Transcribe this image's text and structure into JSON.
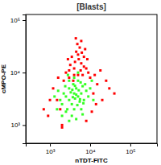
{
  "chart_data": {
    "type": "scatter",
    "title": "[Blasts]",
    "x_label": "nTDT-FITC",
    "y_label": "cMPO-PE",
    "log": true,
    "xlim": [
      250,
      460000
    ],
    "ylim": [
      450,
      128000
    ],
    "xticks": [
      {
        "value": 1000,
        "label": "10³"
      },
      {
        "value": 10000,
        "label": "10⁴"
      },
      {
        "value": 100000,
        "label": "10⁵"
      }
    ],
    "yticks": [
      {
        "value": 1000,
        "label": "10³"
      },
      {
        "value": 10000,
        "label": "10⁴"
      },
      {
        "value": 100000,
        "label": "10⁵"
      }
    ],
    "series": [
      {
        "color": "#ff0000",
        "x": [
          3000,
          4000,
          5000,
          6000,
          3500,
          4500,
          5500,
          7000,
          2500,
          8000,
          6500,
          4200,
          3200,
          5200,
          7500,
          4800,
          3800,
          9000,
          2200,
          6000,
          5000,
          3000,
          4000,
          7000,
          5800,
          2800,
          10000,
          8500,
          6200,
          4400,
          1500,
          1200,
          1800,
          12000,
          15000,
          20000,
          900,
          1000,
          25000,
          14000,
          2000,
          8000,
          11000,
          30000,
          700,
          13000,
          18000,
          1600,
          2000,
          40000
        ],
        "values": [
          8000,
          12000,
          9000,
          15000,
          20000,
          25000,
          30000,
          20000,
          10000,
          12000,
          9000,
          16000,
          14000,
          18000,
          28000,
          35000,
          7000,
          10000,
          7000,
          40000,
          22000,
          11000,
          9000,
          13000,
          11000,
          18000,
          8000,
          18000,
          24000,
          45000,
          3000,
          5000,
          2000,
          4000,
          6000,
          3000,
          1500,
          3000,
          7000,
          2500,
          1000,
          1200,
          1800,
          5000,
          2000,
          9000,
          11000,
          8000,
          900,
          4000
        ]
      },
      {
        "color": "#33ff22",
        "x": [
          3000,
          4000,
          5000,
          3500,
          4500,
          6000,
          2500,
          5500,
          4000,
          3000,
          7000,
          2000,
          3800,
          5000,
          6500,
          4200,
          3300,
          2700,
          8000,
          4800,
          6000,
          3500,
          2500,
          5200,
          4500,
          3700,
          2200,
          9000,
          1800,
          4000,
          3000,
          5800,
          7500,
          1500,
          2000,
          10000,
          12000,
          6500,
          4500,
          3000,
          1300,
          11000,
          2800,
          5000,
          4200,
          3600,
          5600,
          6800,
          2400,
          1600
        ],
        "values": [
          3000,
          4000,
          3500,
          2500,
          5000,
          4000,
          3500,
          2800,
          2000,
          5000,
          3000,
          2500,
          6000,
          7000,
          5500,
          3200,
          4200,
          2000,
          4500,
          2400,
          2000,
          1500,
          1800,
          4600,
          3800,
          3400,
          4000,
          3500,
          3000,
          8000,
          7000,
          6500,
          6000,
          2000,
          1500,
          5000,
          3000,
          1600,
          1300,
          1200,
          3500,
          7000,
          9000,
          10000,
          5600,
          4700,
          3100,
          2600,
          5500,
          4500
        ]
      }
    ]
  }
}
